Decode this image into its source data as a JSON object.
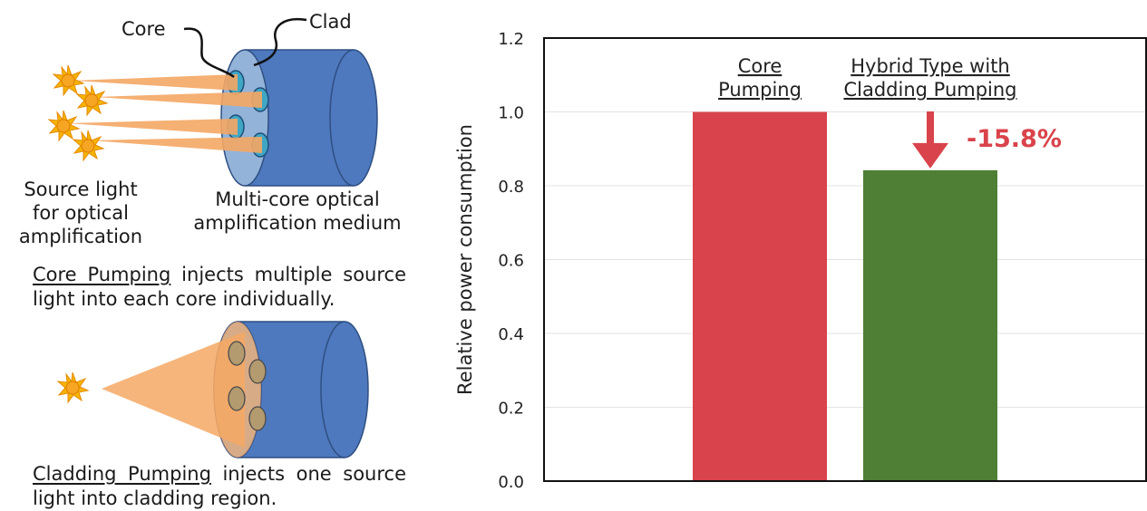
{
  "diagram": {
    "core_label": "Core",
    "clad_label": "Clad",
    "source_label": [
      "Source light",
      "for optical",
      "amplification"
    ],
    "medium_label": [
      "Multi-core optical",
      "amplification medium"
    ],
    "core_pumping": {
      "term": "Core Pumping",
      "rest": " injects multiple source light into each core individually."
    },
    "cladding_pumping": {
      "term": "Cladding Pumping",
      "rest": " injects one source light into cladding region."
    }
  },
  "chart_data": {
    "type": "bar",
    "categories": [
      "Core Pumping",
      "Hybrid Type with Cladding Pumping"
    ],
    "category_lines": [
      [
        "Core",
        "Pumping"
      ],
      [
        "Hybrid Type with",
        "Cladding Pumping"
      ]
    ],
    "values": [
      1.0,
      0.842
    ],
    "colors": [
      "#d9434b",
      "#4e7f34"
    ],
    "ylabel": "Relative power consumption",
    "ylim": [
      0,
      1.2
    ],
    "yticks": [
      "0.0",
      "0.2",
      "0.4",
      "0.6",
      "0.8",
      "1.0",
      "1.2"
    ],
    "grid": true,
    "annotation": {
      "text": "-15.8%",
      "target_category": "Hybrid Type with Cladding Pumping",
      "color": "#d9434b"
    }
  }
}
